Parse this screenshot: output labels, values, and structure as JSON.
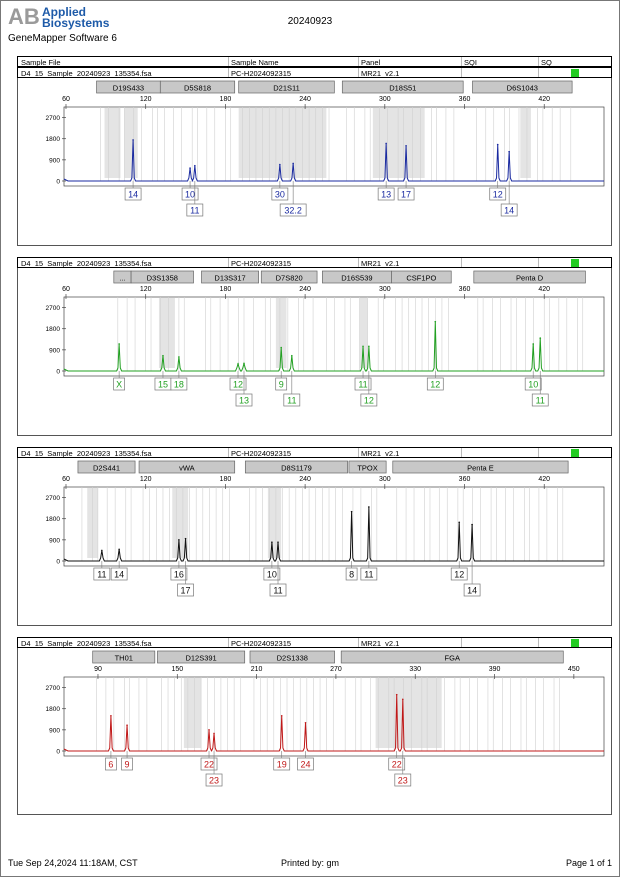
{
  "header": {
    "brand": "Applied Biosystems",
    "brand_line1": "Applied",
    "brand_line2": "Biosystems",
    "software": "GeneMapper Software 6",
    "title": "20240923"
  },
  "table_headers": [
    "Sample File",
    "Sample Name",
    "Panel",
    "SQI",
    "SQ"
  ],
  "footer": {
    "printed_at": "Tue Sep 24,2024 11:18AM, CST",
    "printed_by": "Printed by: gm",
    "page": "Page 1 of 1"
  },
  "colors": {
    "blue": "#1a2aa0",
    "green": "#22a022",
    "black": "#111111",
    "red": "#c01818",
    "sq_status": "#22cc22",
    "marker_bin": "#c8c8c8"
  },
  "chart_data": [
    {
      "type": "line",
      "sample_file": "D4_15_Sample_20240923_135354.fsa",
      "sample_name": "PC-H2024092315",
      "panel": "MR21_v2.1",
      "dye_color": "#1a2aa0",
      "xlim": [
        58.5,
        465
      ],
      "ylim": [
        0,
        3150
      ],
      "xticks": [
        60,
        120,
        180,
        240,
        300,
        360,
        420
      ],
      "yticks": [
        0,
        900,
        1800,
        2700
      ],
      "markers": [
        {
          "name": "D19S433",
          "range": [
            83,
            131
          ]
        },
        {
          "name": "D5S818",
          "range": [
            131,
            187
          ]
        },
        {
          "name": "D21S11",
          "range": [
            190,
            262
          ]
        },
        {
          "name": "D18S51",
          "range": [
            268,
            359
          ]
        },
        {
          "name": "D6S1043",
          "range": [
            366,
            441
          ]
        }
      ],
      "bin_shading": [
        [
          89,
          101
        ],
        [
          104,
          114
        ],
        [
          190,
          256
        ],
        [
          291,
          330
        ],
        [
          402,
          410
        ]
      ],
      "peaks": [
        {
          "size": 110.5,
          "height": 1750,
          "allele": "14",
          "row": 1
        },
        {
          "size": 153.4,
          "height": 550,
          "allele": "10",
          "row": 1
        },
        {
          "size": 157,
          "height": 650,
          "allele": "11",
          "row": 2
        },
        {
          "size": 221,
          "height": 700,
          "allele": "30",
          "row": 1
        },
        {
          "size": 231,
          "height": 750,
          "allele": "32.2",
          "row": 2
        },
        {
          "size": 301,
          "height": 1600,
          "allele": "13",
          "row": 1
        },
        {
          "size": 316,
          "height": 1500,
          "allele": "17",
          "row": 1
        },
        {
          "size": 385,
          "height": 1550,
          "allele": "12",
          "row": 1
        },
        {
          "size": 393.6,
          "height": 1250,
          "allele": "14",
          "row": 2
        }
      ]
    },
    {
      "type": "line",
      "sample_file": "D4_15_Sample_20240923_135354.fsa",
      "sample_name": "PC-H2024092315",
      "panel": "MR21_v2.1",
      "dye_color": "#22a022",
      "xlim": [
        58.5,
        465
      ],
      "ylim": [
        0,
        3150
      ],
      "xticks": [
        60,
        120,
        180,
        240,
        300,
        360,
        420
      ],
      "yticks": [
        0,
        900,
        1800,
        2700
      ],
      "markers": [
        {
          "name": "...",
          "range": [
            96,
            109
          ]
        },
        {
          "name": "D3S1358",
          "range": [
            109,
            156
          ]
        },
        {
          "name": "D13S317",
          "range": [
            162,
            205
          ]
        },
        {
          "name": "D7S820",
          "range": [
            207,
            249
          ]
        },
        {
          "name": "D16S539",
          "range": [
            253,
            305
          ]
        },
        {
          "name": "CSF1PO",
          "range": [
            305,
            350
          ]
        },
        {
          "name": "Penta D",
          "range": [
            367,
            451
          ]
        }
      ],
      "bin_shading": [
        [
          130,
          142
        ],
        [
          218,
          226
        ],
        [
          281,
          287
        ]
      ],
      "peaks": [
        {
          "size": 100,
          "height": 1150,
          "allele": "X",
          "row": 1
        },
        {
          "size": 133,
          "height": 650,
          "allele": "15",
          "row": 1
        },
        {
          "size": 145,
          "height": 600,
          "allele": "18",
          "row": 1
        },
        {
          "size": 189.5,
          "height": 300,
          "allele": "12",
          "row": 1
        },
        {
          "size": 194,
          "height": 330,
          "allele": "13",
          "row": 2
        },
        {
          "size": 222,
          "height": 1000,
          "allele": "9",
          "row": 1
        },
        {
          "size": 230,
          "height": 650,
          "allele": "11",
          "row": 2
        },
        {
          "size": 283.6,
          "height": 1050,
          "allele": "11",
          "row": 1
        },
        {
          "size": 288,
          "height": 1050,
          "allele": "12",
          "row": 2
        },
        {
          "size": 338,
          "height": 2100,
          "allele": "12",
          "row": 1
        },
        {
          "size": 411.7,
          "height": 1150,
          "allele": "10",
          "row": 1
        },
        {
          "size": 417,
          "height": 1400,
          "allele": "11",
          "row": 2
        }
      ]
    },
    {
      "type": "line",
      "sample_file": "D4_15_Sample_20240923_135354.fsa",
      "sample_name": "PC-H2024092315",
      "panel": "MR21_v2.1",
      "dye_color": "#111111",
      "xlim": [
        58.5,
        465
      ],
      "ylim": [
        0,
        3150
      ],
      "xticks": [
        60,
        120,
        180,
        240,
        300,
        360,
        420
      ],
      "yticks": [
        0,
        900,
        1800,
        2700
      ],
      "markers": [
        {
          "name": "D2S441",
          "range": [
            69,
            112
          ]
        },
        {
          "name": "vWA",
          "range": [
            115,
            187
          ]
        },
        {
          "name": "D8S1179",
          "range": [
            195,
            272
          ]
        },
        {
          "name": "TPOX",
          "range": [
            273,
            301
          ]
        },
        {
          "name": "Penta E",
          "range": [
            306,
            438
          ]
        }
      ],
      "bin_shading": [
        [
          76,
          84
        ],
        [
          140,
          152
        ],
        [
          212,
          222
        ]
      ],
      "peaks": [
        {
          "size": 87,
          "height": 450,
          "allele": "11",
          "row": 1
        },
        {
          "size": 100,
          "height": 500,
          "allele": "14",
          "row": 1
        },
        {
          "size": 145,
          "height": 900,
          "allele": "16",
          "row": 1
        },
        {
          "size": 150,
          "height": 950,
          "allele": "17",
          "row": 2
        },
        {
          "size": 215,
          "height": 800,
          "allele": "10",
          "row": 1
        },
        {
          "size": 219.6,
          "height": 800,
          "allele": "11",
          "row": 2
        },
        {
          "size": 275,
          "height": 2100,
          "allele": "8",
          "row": 1
        },
        {
          "size": 288,
          "height": 2300,
          "allele": "11",
          "row": 1
        },
        {
          "size": 356,
          "height": 1650,
          "allele": "12",
          "row": 1
        },
        {
          "size": 365.7,
          "height": 1550,
          "allele": "14",
          "row": 2
        }
      ]
    },
    {
      "type": "line",
      "sample_file": "D4_15_Sample_20240923_135354.fsa",
      "sample_name": "PC-H2024092315",
      "panel": "MR21_v2.1",
      "dye_color": "#c01818",
      "xlim": [
        64.3,
        472.8
      ],
      "ylim": [
        0,
        3150
      ],
      "xticks": [
        90,
        150,
        210,
        270,
        330,
        390,
        450
      ],
      "yticks": [
        0,
        900,
        1800,
        2700
      ],
      "markers": [
        {
          "name": "TH01",
          "range": [
            86,
            133
          ]
        },
        {
          "name": "D12S391",
          "range": [
            135,
            201
          ]
        },
        {
          "name": "D2S1338",
          "range": [
            205,
            269
          ]
        },
        {
          "name": "FGA",
          "range": [
            274,
            442
          ]
        }
      ],
      "bin_shading": [
        [
          155,
          168
        ],
        [
          300,
          350
        ]
      ],
      "peaks": [
        {
          "size": 99.8,
          "height": 1500,
          "allele": "6",
          "row": 1
        },
        {
          "size": 112,
          "height": 1100,
          "allele": "9",
          "row": 1
        },
        {
          "size": 174,
          "height": 900,
          "allele": "22",
          "row": 1
        },
        {
          "size": 177.8,
          "height": 750,
          "allele": "23",
          "row": 2
        },
        {
          "size": 229,
          "height": 1500,
          "allele": "19",
          "row": 1
        },
        {
          "size": 247,
          "height": 1200,
          "allele": "24",
          "row": 1
        },
        {
          "size": 316,
          "height": 2400,
          "allele": "22",
          "row": 1
        },
        {
          "size": 320.6,
          "height": 2200,
          "allele": "23",
          "row": 2
        }
      ]
    }
  ]
}
